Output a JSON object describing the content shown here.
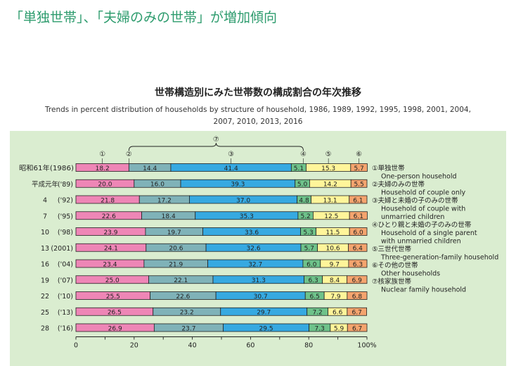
{
  "header": {
    "title": "「単独世帯」、「夫婦のみの世帯」が増加傾向"
  },
  "chart_data": {
    "type": "bar",
    "orientation": "horizontal",
    "stacked": true,
    "title": "世帯構造別にみた世帯数の構成割合の年次推移",
    "subtitle_line1": "Trends in percent distribution of households by structure of household, 1986, 1989, 1992, 1995, 1998, 2001, 2004,",
    "subtitle_line2": "2007, 2010, 2013, 2016",
    "categories": [
      "昭和61年(1986)",
      "平成元年 ('89)",
      "4 ('92)",
      "7 ('95)",
      "10 ('98)",
      "13 (2001)",
      "16 ('04)",
      "19 ('07)",
      "22 ('10)",
      "25 ('13)",
      "28 ('16)"
    ],
    "row_labels": [
      {
        "a": "昭和61年(1986)",
        "b": ""
      },
      {
        "a": "平成元年",
        "b": "('89)"
      },
      {
        "a": "4",
        "b": "('92)"
      },
      {
        "a": "7",
        "b": "('95)"
      },
      {
        "a": "10",
        "b": "('98)"
      },
      {
        "a": "13",
        "b": "(2001)"
      },
      {
        "a": "16",
        "b": "('04)"
      },
      {
        "a": "19",
        "b": "('07)"
      },
      {
        "a": "22",
        "b": "('10)"
      },
      {
        "a": "25",
        "b": "('13)"
      },
      {
        "a": "28",
        "b": "('16)"
      }
    ],
    "series": [
      {
        "name": "①単独世帯 One-person household",
        "color": "#ee86b6",
        "values": [
          18.2,
          20.0,
          21.8,
          22.6,
          23.9,
          24.1,
          23.4,
          25.0,
          25.5,
          26.5,
          26.9
        ]
      },
      {
        "name": "②夫婦のみの世帯 Household of couple only",
        "color": "#7fb2b8",
        "values": [
          14.4,
          16.0,
          17.2,
          18.4,
          19.7,
          20.6,
          21.9,
          22.1,
          22.6,
          23.2,
          23.7
        ]
      },
      {
        "name": "③夫婦と未婚の子のみの世帯 Household of couple with unmarried children",
        "color": "#36a9e1",
        "values": [
          41.4,
          39.3,
          37.0,
          35.3,
          33.6,
          32.6,
          32.7,
          31.3,
          30.7,
          29.7,
          29.5
        ]
      },
      {
        "name": "④ひとり親と未婚の子のみの世帯 Household of a single parent with unmarried children",
        "color": "#6ec28a",
        "values": [
          5.1,
          5.0,
          4.8,
          5.2,
          5.3,
          5.7,
          6.0,
          6.3,
          6.5,
          7.2,
          7.3
        ]
      },
      {
        "name": "⑤三世代世帯 Three-generation-family household",
        "color": "#fff59a",
        "values": [
          15.3,
          14.2,
          13.1,
          12.5,
          11.5,
          10.6,
          9.7,
          8.4,
          7.9,
          6.6,
          5.9
        ]
      },
      {
        "name": "⑥その他の世帯 Other households",
        "color": "#f4a46e",
        "values": [
          5.7,
          5.5,
          6.1,
          6.1,
          6.0,
          6.4,
          6.3,
          6.9,
          6.8,
          6.7,
          6.7
        ]
      }
    ],
    "value_labels": [
      [
        "18.2",
        "14.4",
        "41.4",
        "5.1",
        "15.3",
        "5.7"
      ],
      [
        "20.0",
        "16.0",
        "39.3",
        "5.0",
        "14.2",
        "5.5"
      ],
      [
        "21.8",
        "17.2",
        "37.0",
        "4.8",
        "13.1",
        "6.1"
      ],
      [
        "22.6",
        "18.4",
        "35.3",
        "5.2",
        "12.5",
        "6.1"
      ],
      [
        "23.9",
        "19.7",
        "33.6",
        "5.3",
        "11.5",
        "6.0"
      ],
      [
        "24.1",
        "20.6",
        "32.6",
        "5.7",
        "10.6",
        "6.4"
      ],
      [
        "23.4",
        "21.9",
        "32.7",
        "6.0",
        "9.7",
        "6.3"
      ],
      [
        "25.0",
        "22.1",
        "31.3",
        "6.3",
        "8.4",
        "6.9"
      ],
      [
        "25.5",
        "22.6",
        "30.7",
        "6.5",
        "7.9",
        "6.8"
      ],
      [
        "26.5",
        "23.2",
        "29.7",
        "7.2",
        "6.6",
        "6.7"
      ],
      [
        "26.9",
        "23.7",
        "29.5",
        "7.3",
        "5.9",
        "6.7"
      ]
    ],
    "segment_markers": [
      "①",
      "②",
      "③",
      "④",
      "⑤",
      "⑥"
    ],
    "bracket_marker": "⑦",
    "legend": [
      {
        "jp": "①単独世帯",
        "en": [
          "One-person household"
        ]
      },
      {
        "jp": "②夫婦のみの世帯",
        "en": [
          "Household of couple only"
        ]
      },
      {
        "jp": "③夫婦と未婚の子のみの世帯",
        "en": [
          "Household of couple with",
          "unmarried children"
        ]
      },
      {
        "jp": "④ひとり親と未婚の子のみの世帯",
        "en": [
          "Household of a single parent",
          "with unmarried children"
        ]
      },
      {
        "jp": "⑤三世代世帯",
        "en": [
          "Three-generation-family household"
        ]
      },
      {
        "jp": "⑥その他の世帯",
        "en": [
          "Other households"
        ]
      },
      {
        "jp": "⑦核家族世帯",
        "en": [
          "Nuclear family household"
        ]
      }
    ],
    "legend_position": "right",
    "x_ticks": [
      {
        "v": 0,
        "label": "0"
      },
      {
        "v": 20,
        "label": "20"
      },
      {
        "v": 40,
        "label": "40"
      },
      {
        "v": 60,
        "label": "60"
      },
      {
        "v": 80,
        "label": "80"
      },
      {
        "v": 100,
        "label": "100%"
      }
    ],
    "xlim": [
      0,
      100
    ],
    "xlabel": "",
    "ylabel": ""
  }
}
